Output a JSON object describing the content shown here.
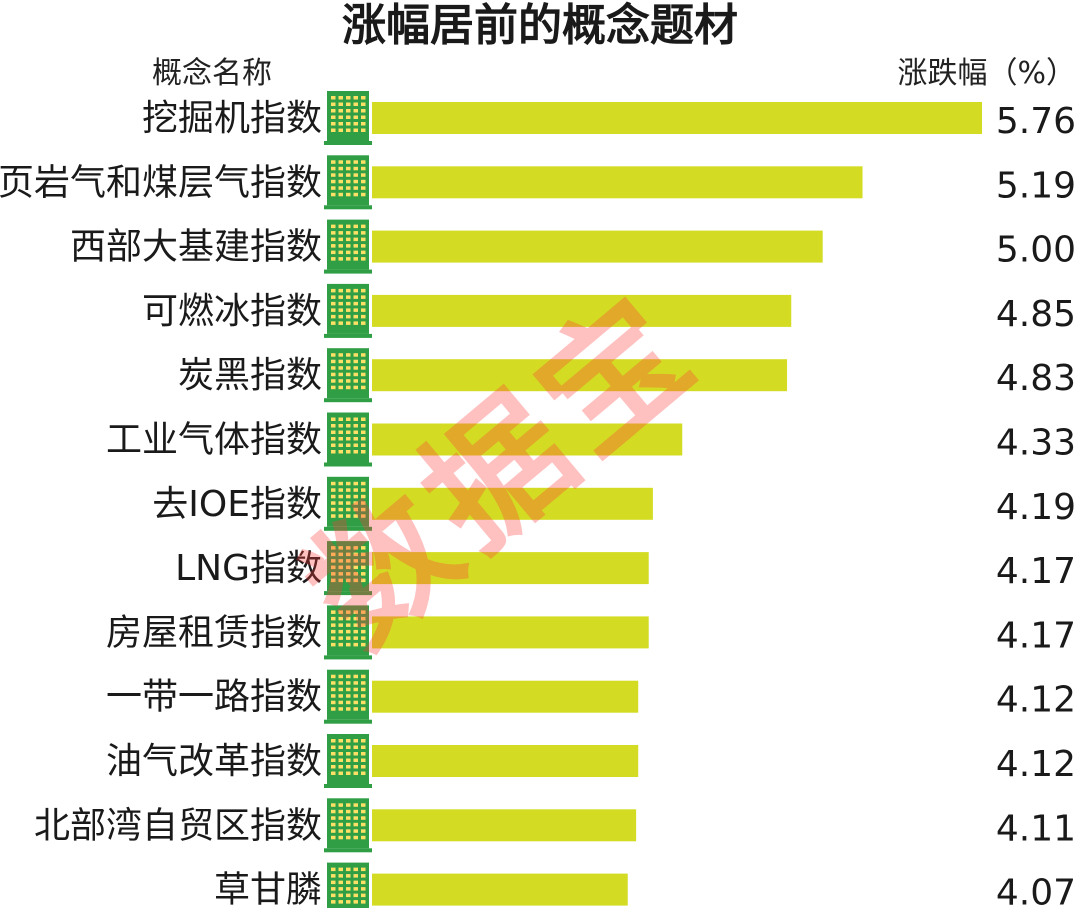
{
  "watermark": "数据宝",
  "colors": {
    "bar": "#d3dc23",
    "building": "#2f9e44",
    "building_window": "#ffe066",
    "text": "#1a1a1a"
  },
  "chart_data": {
    "type": "bar",
    "orientation": "horizontal",
    "title": "涨幅居前的概念题材",
    "category_header": "概念名称",
    "value_header": "涨跌幅（%）",
    "categories": [
      "挖掘机指数",
      "页岩气和煤层气指数",
      "西部大基建指数",
      "可燃冰指数",
      "炭黑指数",
      "工业气体指数",
      "去IOE指数",
      "LNG指数",
      "房屋租赁指数",
      "一带一路指数",
      "油气改革指数",
      "北部湾自贸区指数",
      "草甘膦"
    ],
    "values": [
      5.76,
      5.19,
      5.0,
      4.85,
      4.83,
      4.33,
      4.19,
      4.17,
      4.17,
      4.12,
      4.12,
      4.11,
      4.07
    ],
    "value_labels": [
      "5.76",
      "5.19",
      "5.00",
      "4.85",
      "4.83",
      "4.33",
      "4.19",
      "4.17",
      "4.17",
      "4.12",
      "4.12",
      "4.11",
      "4.07"
    ],
    "xlim": [
      2.85,
      5.76
    ],
    "grid": false,
    "legend": "none"
  }
}
